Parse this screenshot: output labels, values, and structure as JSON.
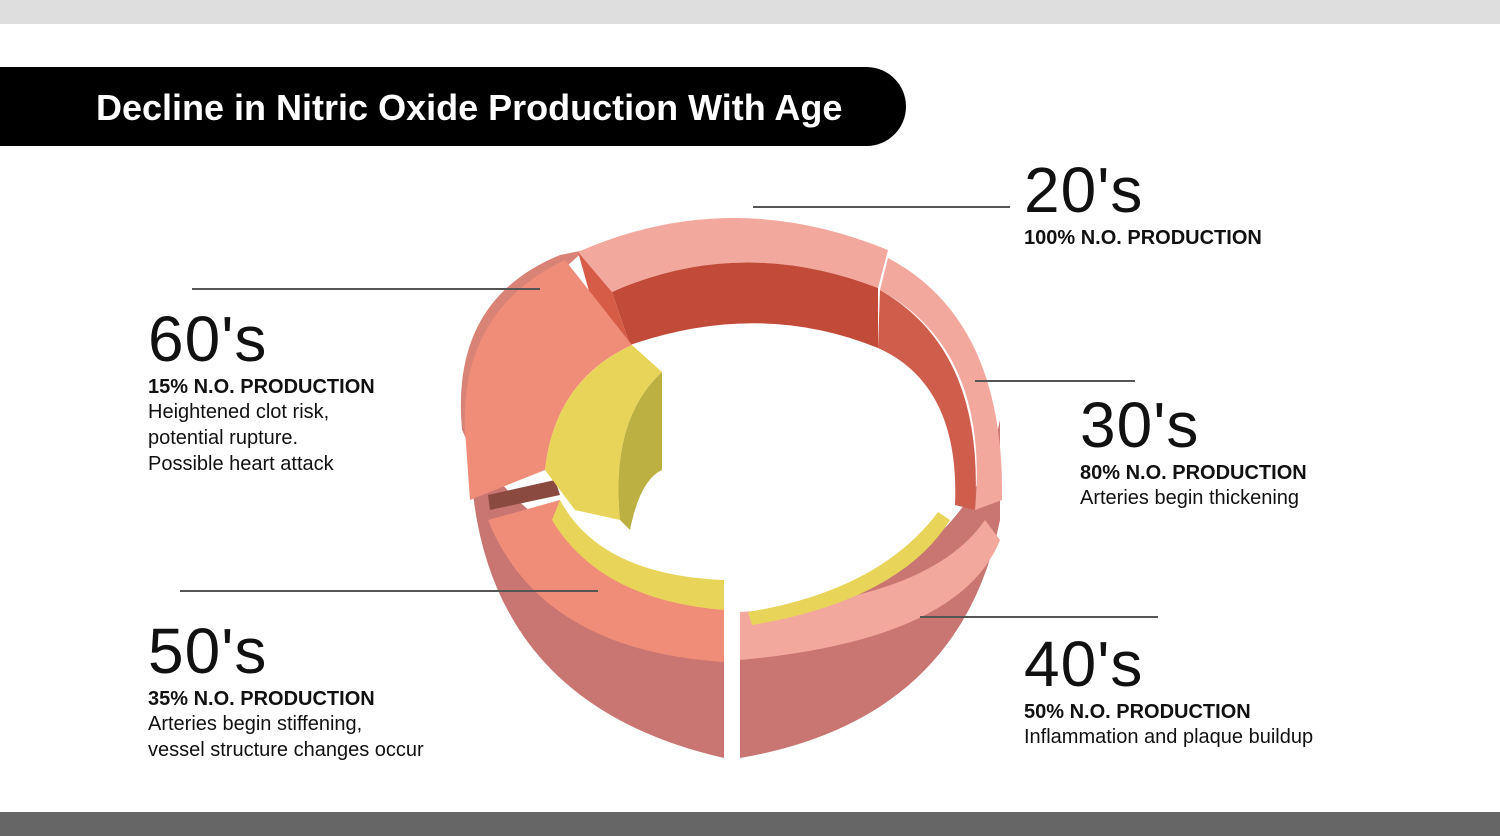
{
  "title": "Decline in Nitric Oxide Production With Age",
  "stages": [
    {
      "decade": "20's",
      "production": "100% N.O. PRODUCTION",
      "description": []
    },
    {
      "decade": "30's",
      "production": "80% N.O. PRODUCTION",
      "description": [
        "Arteries begin thickening"
      ]
    },
    {
      "decade": "40's",
      "production": "50% N.O. PRODUCTION",
      "description": [
        "Inflammation and plaque buildup"
      ]
    },
    {
      "decade": "50's",
      "production": "35% N.O. PRODUCTION",
      "description": [
        "Arteries begin stiffening,",
        "vessel structure changes occur"
      ]
    },
    {
      "decade": "60's",
      "production": "15% N.O. PRODUCTION",
      "description": [
        "Heightened clot risk,",
        "potential rupture.",
        "Possible heart attack"
      ]
    }
  ],
  "colors": {
    "title_bar": "#000000",
    "top_strip": "#dedede",
    "bottom_strip": "#666666",
    "artery_outer": "#c97572",
    "artery_rim": "#f3a89e",
    "artery_inner": "#c24a38",
    "artery_wall": "#ef8d78",
    "plaque": "#e9d45a",
    "plaque_dark": "#bcb043",
    "leader_line": "#555555"
  }
}
